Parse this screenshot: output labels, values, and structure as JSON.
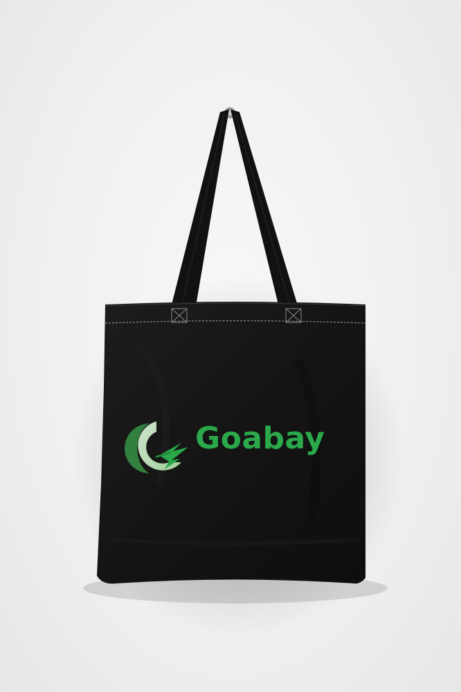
{
  "brand": {
    "name": "Goabay",
    "text_color": "#2aa84a",
    "mark_icon": "leaf-g-logo-icon"
  },
  "scene": {
    "background_color": "#f0f0f0",
    "bag_color": "#161616"
  }
}
